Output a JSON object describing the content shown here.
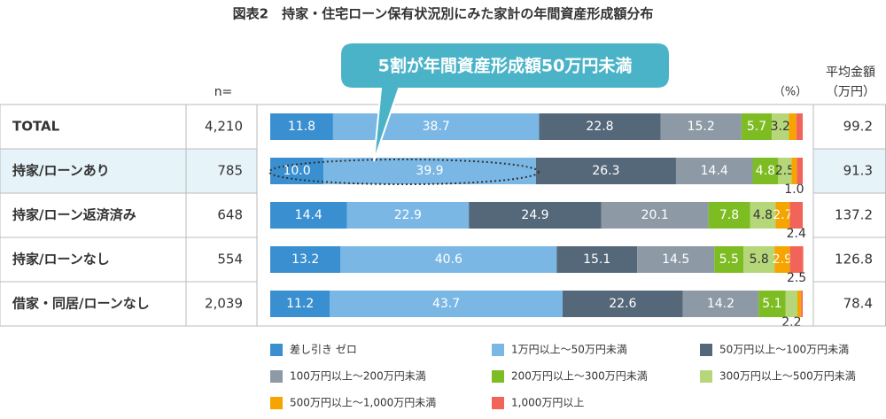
{
  "chart_data": {
    "type": "stacked_bar_h",
    "title": "図表2　持家・住宅ローン保有状況別にみた家計の年間資産形成額分布",
    "callout": "5割が年間資産形成額50万円未満",
    "n_header": "n=",
    "unit_label": "（%）",
    "avg_header": [
      "平均金額",
      "（万円）"
    ],
    "categories": [
      "TOTAL",
      "持家/ローンあり",
      "持家/ローン返済済み",
      "持家/ローンなし",
      "借家・同居/ローンなし"
    ],
    "n": [
      "4,210",
      "785",
      "648",
      "554",
      "2,039"
    ],
    "averages": [
      99.2,
      91.3,
      137.2,
      126.8,
      78.4
    ],
    "xlim": [
      0,
      100
    ],
    "series": [
      {
        "name": "差し引き ゼロ",
        "color": "#3a8fd0",
        "values": [
          11.8,
          10.0,
          14.4,
          13.2,
          11.2
        ],
        "value_labels": [
          "11.8",
          "10.0",
          "14.4",
          "13.2",
          "11.2"
        ]
      },
      {
        "name": "1万円以上～50万円未満",
        "color": "#7ab7e4",
        "values": [
          38.7,
          39.9,
          22.9,
          40.6,
          43.7
        ],
        "value_labels": [
          "38.7",
          "39.9",
          "22.9",
          "40.6",
          "43.7"
        ]
      },
      {
        "name": "50万円以上～100万円未満",
        "color": "#55687a",
        "values": [
          22.8,
          26.3,
          24.9,
          15.1,
          22.6
        ],
        "value_labels": [
          "22.8",
          "26.3",
          "24.9",
          "15.1",
          "22.6"
        ]
      },
      {
        "name": "100万円以上～200万円未満",
        "color": "#8d9aa6",
        "values": [
          15.2,
          14.4,
          20.1,
          14.5,
          14.2
        ],
        "value_labels": [
          "15.2",
          "14.4",
          "20.1",
          "14.5",
          "14.2"
        ]
      },
      {
        "name": "200万円以上～300万円未満",
        "color": "#7dbd23",
        "values": [
          5.7,
          4.8,
          7.8,
          5.5,
          5.1
        ],
        "value_labels": [
          "5.7",
          "4.8",
          "7.8",
          "5.5",
          "5.1"
        ]
      },
      {
        "name": "300万円以上～500万円未満",
        "color": "#b5d77a",
        "values": [
          3.2,
          2.5,
          4.8,
          5.8,
          2.2
        ],
        "value_labels": [
          "3.2",
          "2.5",
          "4.8",
          "5.8",
          "2.2"
        ]
      },
      {
        "name": "500万円以上～1,000万円未満",
        "color": "#f5a400",
        "values": [
          1.4,
          1.0,
          2.7,
          2.9,
          0.7
        ],
        "value_labels": [
          null,
          "1.0",
          "2.7",
          "2.9",
          null
        ]
      },
      {
        "name": "1,000万円以上",
        "color": "#f26459",
        "values": [
          1.2,
          1.1,
          2.4,
          2.5,
          0.3
        ],
        "value_labels": [
          null,
          null,
          "2.4",
          "2.5",
          null
        ]
      }
    ]
  }
}
